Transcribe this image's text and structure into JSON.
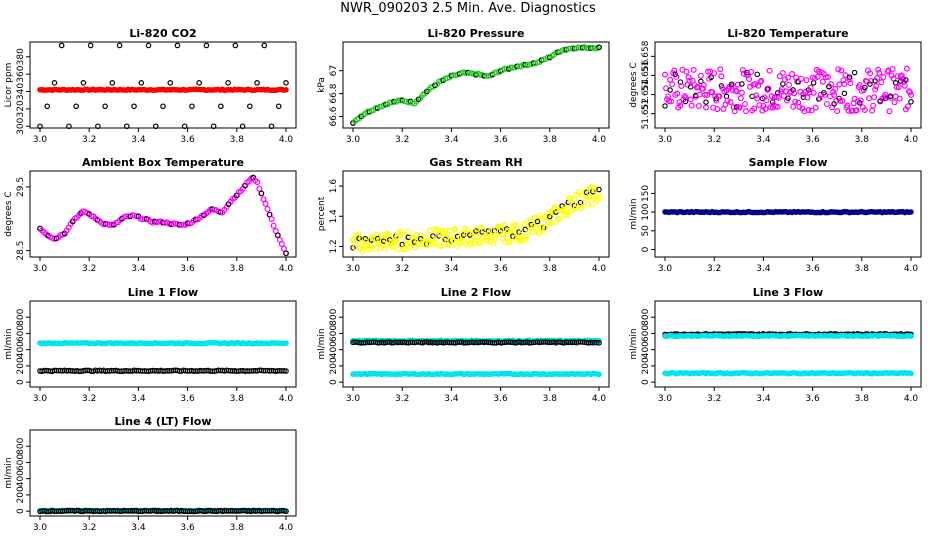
{
  "title": "NWR_090203  2.5 Min. Ave. Diagnostics",
  "colors": {
    "black": "#000000",
    "red": "#ff0000",
    "green": "#22cc22",
    "magenta": "#ff00ff",
    "yellow": "#ffff00",
    "navy": "#000080",
    "cyan": "#00e5ee"
  },
  "chart_data": [
    {
      "type": "scatter",
      "title": "Li-820 CO2",
      "ylabel": "Licor ppm",
      "xlim": [
        3.0,
        4.0
      ],
      "ylim": [
        298,
        397
      ],
      "xticks": [
        "3.0",
        "3.2",
        "3.4",
        "3.6",
        "3.8",
        "4.0"
      ],
      "yticks": [
        300,
        320,
        340,
        360,
        380
      ],
      "series": [
        {
          "name": "co2",
          "color": "red",
          "kind": "flat",
          "y": 342
        },
        {
          "name": "black levels",
          "color": "black",
          "kind": "levels",
          "levels": [
            300,
            323,
            350,
            393
          ]
        }
      ]
    },
    {
      "type": "scatter",
      "title": "Li-820 Pressure",
      "ylabel": "kPa",
      "xlim": [
        3.0,
        4.0
      ],
      "ylim": [
        66.5,
        67.25
      ],
      "xticks": [
        "3.0",
        "3.2",
        "3.4",
        "3.6",
        "3.8",
        "4.0"
      ],
      "yticks": [
        66.6,
        66.8,
        67.0
      ],
      "series": [
        {
          "name": "pressure",
          "color": "green",
          "kind": "trend",
          "points": [
            [
              3.0,
              66.55
            ],
            [
              3.05,
              66.63
            ],
            [
              3.1,
              66.68
            ],
            [
              3.15,
              66.72
            ],
            [
              3.2,
              66.74
            ],
            [
              3.25,
              66.72
            ],
            [
              3.3,
              66.82
            ],
            [
              3.35,
              66.9
            ],
            [
              3.4,
              66.95
            ],
            [
              3.45,
              66.98
            ],
            [
              3.5,
              66.97
            ],
            [
              3.55,
              66.95
            ],
            [
              3.6,
              67.0
            ],
            [
              3.65,
              67.03
            ],
            [
              3.7,
              67.05
            ],
            [
              3.75,
              67.07
            ],
            [
              3.8,
              67.12
            ],
            [
              3.85,
              67.18
            ],
            [
              3.9,
              67.2
            ],
            [
              3.95,
              67.2
            ],
            [
              4.0,
              67.2
            ]
          ]
        }
      ]
    },
    {
      "type": "scatter",
      "title": "Li-820 Temperature",
      "ylabel": "degrees C",
      "xlim": [
        3.0,
        4.0
      ],
      "ylim": [
        51.6505,
        51.6595
      ],
      "xticks": [
        "3.0",
        "3.2",
        "3.4",
        "3.6",
        "3.8",
        "4.0"
      ],
      "yticks": [
        51.652,
        51.654,
        51.656,
        51.658
      ],
      "series": [
        {
          "name": "temperature",
          "color": "magenta",
          "kind": "noisy",
          "center": 51.6545,
          "spread": 0.0045
        }
      ]
    },
    {
      "type": "scatter",
      "title": "Ambient Box Temperature",
      "ylabel": "degrees C",
      "xlim": [
        3.0,
        4.0
      ],
      "ylim": [
        28.4,
        29.75
      ],
      "xticks": [
        "3.0",
        "3.2",
        "3.4",
        "3.6",
        "3.8",
        "4.0"
      ],
      "yticks": [
        28.5,
        29.5
      ],
      "series": [
        {
          "name": "box temp",
          "color": "magenta",
          "kind": "trend",
          "points": [
            [
              3.0,
              28.85
            ],
            [
              3.03,
              28.75
            ],
            [
              3.06,
              28.68
            ],
            [
              3.1,
              28.78
            ],
            [
              3.14,
              29.0
            ],
            [
              3.18,
              29.12
            ],
            [
              3.22,
              29.02
            ],
            [
              3.26,
              28.92
            ],
            [
              3.3,
              28.9
            ],
            [
              3.34,
              29.02
            ],
            [
              3.38,
              29.05
            ],
            [
              3.42,
              29.0
            ],
            [
              3.46,
              28.95
            ],
            [
              3.5,
              28.95
            ],
            [
              3.54,
              28.92
            ],
            [
              3.58,
              28.9
            ],
            [
              3.62,
              28.95
            ],
            [
              3.66,
              29.05
            ],
            [
              3.7,
              29.15
            ],
            [
              3.74,
              29.1
            ],
            [
              3.78,
              29.3
            ],
            [
              3.82,
              29.45
            ],
            [
              3.86,
              29.65
            ],
            [
              3.88,
              29.6
            ],
            [
              3.92,
              29.2
            ],
            [
              3.96,
              28.8
            ],
            [
              4.0,
              28.45
            ]
          ]
        }
      ]
    },
    {
      "type": "scatter",
      "title": "Gas Stream RH",
      "ylabel": "percent",
      "xlim": [
        3.0,
        4.0
      ],
      "ylim": [
        1.13,
        1.7
      ],
      "xticks": [
        "3.0",
        "3.2",
        "3.4",
        "3.6",
        "3.8",
        "4.0"
      ],
      "yticks": [
        1.2,
        1.4,
        1.6
      ],
      "series": [
        {
          "name": "rh",
          "color": "yellow",
          "kind": "trendnoisy",
          "spread": 0.12,
          "points": [
            [
              3.0,
              1.22
            ],
            [
              3.2,
              1.24
            ],
            [
              3.4,
              1.26
            ],
            [
              3.6,
              1.28
            ],
            [
              3.7,
              1.3
            ],
            [
              3.8,
              1.38
            ],
            [
              3.9,
              1.5
            ],
            [
              4.0,
              1.55
            ]
          ]
        }
      ]
    },
    {
      "type": "scatter",
      "title": "Sample Flow",
      "ylabel": "ml/min",
      "xlim": [
        3.0,
        4.0
      ],
      "ylim": [
        -20,
        210
      ],
      "xticks": [
        "3.0",
        "3.2",
        "3.4",
        "3.6",
        "3.8",
        "4.0"
      ],
      "yticks": [
        0,
        50,
        100,
        150
      ],
      "series": [
        {
          "name": "sample flow",
          "color": "navy",
          "kind": "flat",
          "y": 100
        }
      ]
    },
    {
      "type": "scatter",
      "title": "Line 1 Flow",
      "ylabel": "ml/min",
      "xlim": [
        3.0,
        4.0
      ],
      "ylim": [
        -60,
        1000
      ],
      "xticks": [
        "3.0",
        "3.2",
        "3.4",
        "3.6",
        "3.8",
        "4.0"
      ],
      "yticks": [
        0,
        200,
        400,
        600,
        800
      ],
      "series": [
        {
          "name": "cyan",
          "color": "cyan",
          "kind": "flat",
          "y": 480
        },
        {
          "name": "black",
          "color": "black",
          "kind": "flat",
          "y": 140
        }
      ]
    },
    {
      "type": "scatter",
      "title": "Line 2 Flow",
      "ylabel": "ml/min",
      "xlim": [
        3.0,
        4.0
      ],
      "ylim": [
        -60,
        1000
      ],
      "xticks": [
        "3.0",
        "3.2",
        "3.4",
        "3.6",
        "3.8",
        "4.0"
      ],
      "yticks": [
        0,
        200,
        400,
        600,
        800
      ],
      "series": [
        {
          "name": "cyan high",
          "color": "cyan",
          "kind": "flat",
          "y": 510
        },
        {
          "name": "black",
          "color": "black",
          "kind": "flat",
          "y": 490
        },
        {
          "name": "cyan low",
          "color": "cyan",
          "kind": "flat",
          "y": 100
        }
      ]
    },
    {
      "type": "scatter",
      "title": "Line 3 Flow",
      "ylabel": "ml/min",
      "xlim": [
        3.0,
        4.0
      ],
      "ylim": [
        -60,
        1000
      ],
      "xticks": [
        "3.0",
        "3.2",
        "3.4",
        "3.6",
        "3.8",
        "4.0"
      ],
      "yticks": [
        0,
        200,
        400,
        600,
        800
      ],
      "series": [
        {
          "name": "black",
          "color": "black",
          "kind": "flat",
          "y": 590
        },
        {
          "name": "cyan high",
          "color": "cyan",
          "kind": "flat",
          "y": 570
        },
        {
          "name": "cyan low",
          "color": "cyan",
          "kind": "flat",
          "y": 110
        }
      ]
    },
    {
      "type": "scatter",
      "title": "Line 4 (LT) Flow",
      "ylabel": "ml/min",
      "xlim": [
        3.0,
        4.0
      ],
      "ylim": [
        -60,
        1000
      ],
      "xticks": [
        "3.0",
        "3.2",
        "3.4",
        "3.6",
        "3.8",
        "4.0"
      ],
      "yticks": [
        0,
        200,
        400,
        600,
        800
      ],
      "series": [
        {
          "name": "cyan",
          "color": "cyan",
          "kind": "flat",
          "y": 5
        },
        {
          "name": "black",
          "color": "black",
          "kind": "flat",
          "y": 2
        }
      ]
    }
  ]
}
